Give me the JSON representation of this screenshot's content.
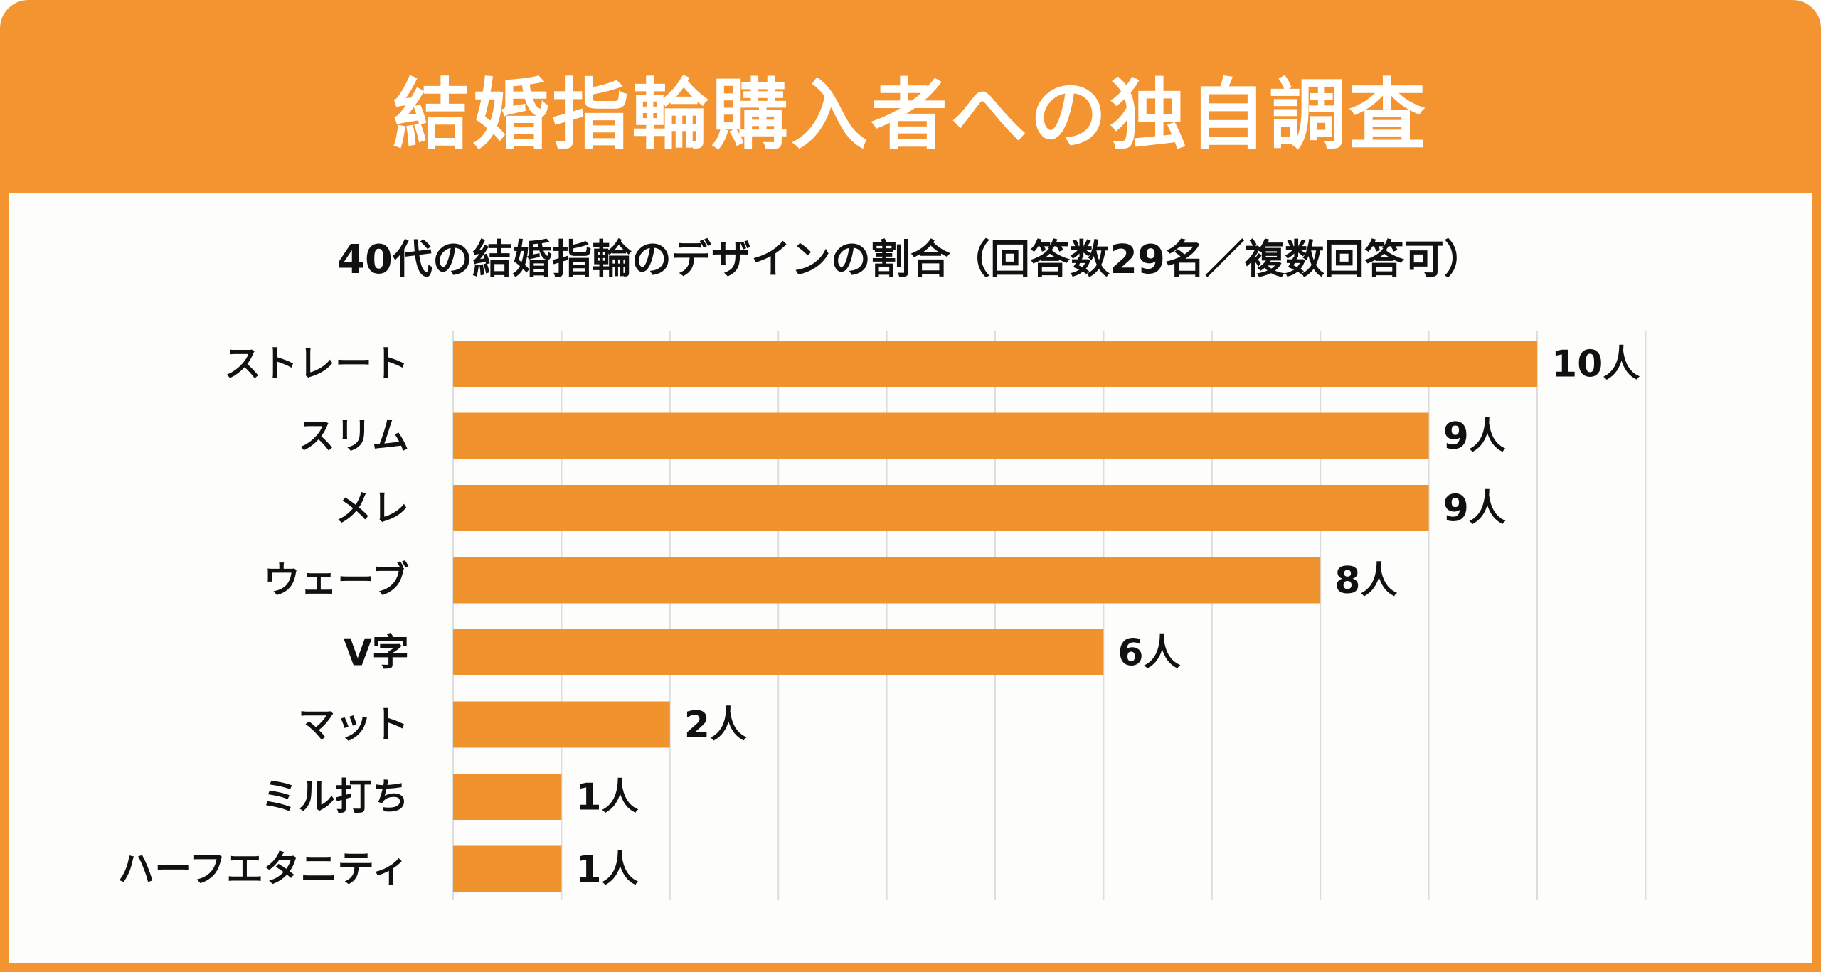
{
  "header": {
    "title": "結婚指輪購入者への独自調査"
  },
  "colors": {
    "accent": "#f39431",
    "bar": "#f0932e",
    "grid": "#dddddd"
  },
  "chart_data": {
    "type": "bar",
    "orientation": "horizontal",
    "title": "40代の結婚指輪のデザインの割合（回答数29名／複数回答可）",
    "categories": [
      "ストレート",
      "スリム",
      "メレ",
      "ウェーブ",
      "V字",
      "マット",
      "ミル打ち",
      "ハーフエタニティ"
    ],
    "values": [
      10,
      9,
      9,
      8,
      6,
      2,
      1,
      1
    ],
    "value_labels": [
      "10人",
      "9人",
      "9人",
      "8人",
      "6人",
      "2人",
      "1人",
      "1人"
    ],
    "xlim": [
      0,
      11
    ],
    "grid": true,
    "xlabel": "",
    "ylabel": ""
  }
}
